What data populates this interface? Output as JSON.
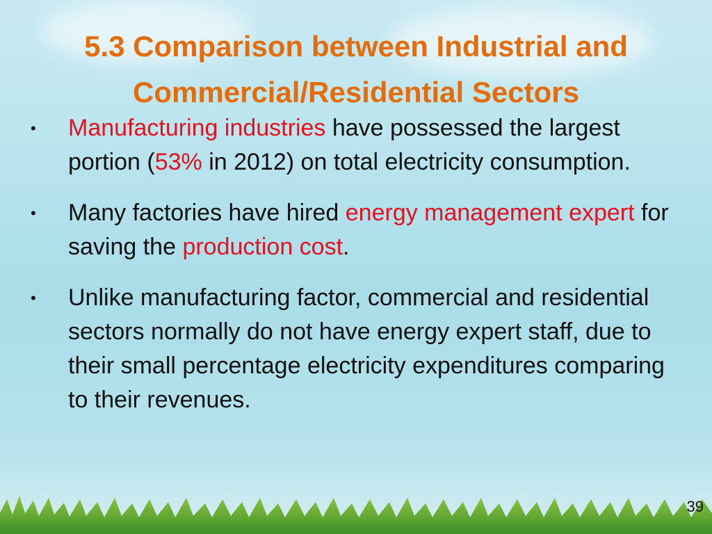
{
  "title_lines": [
    "5.3 Comparison between Industrial and",
    "Commercial/Residential Sectors"
  ],
  "bullets": [
    {
      "runs": [
        "Manufacturing industries",
        " have possessed the largest portion (",
        "53%",
        " in 2012) on total electricity consumption."
      ]
    },
    {
      "runs": [
        "Many factories have hired ",
        "energy management expert",
        " for saving the ",
        "production cost",
        "."
      ]
    },
    {
      "runs": [
        "Unlike manufacturing factor, commercial and residential sectors normally do not have energy expert staff, due to their small percentage electricity expenditures comparing to their revenues."
      ]
    }
  ],
  "page_number": "39"
}
